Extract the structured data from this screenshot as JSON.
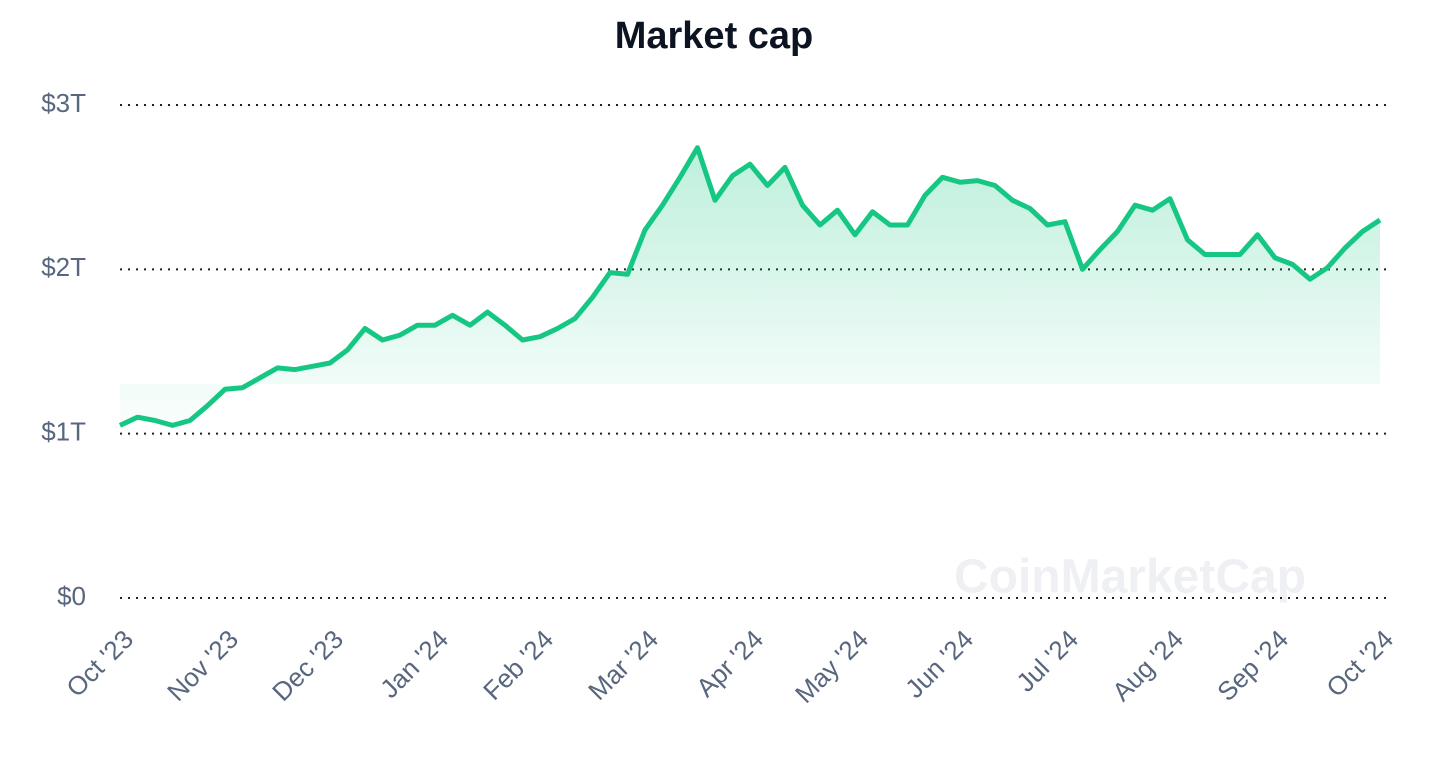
{
  "chart_data": {
    "type": "line",
    "title": "Market cap",
    "watermark": "CoinMarketCap",
    "categories": [
      "Oct '23",
      null,
      null,
      null,
      null,
      null,
      "Nov '23",
      null,
      null,
      null,
      null,
      null,
      "Dec '23",
      null,
      null,
      null,
      null,
      null,
      "Jan '24",
      null,
      null,
      null,
      null,
      null,
      "Feb '24",
      null,
      null,
      null,
      null,
      null,
      "Mar '24",
      null,
      null,
      null,
      null,
      null,
      "Apr '24",
      null,
      null,
      null,
      null,
      null,
      "May '24",
      null,
      null,
      null,
      null,
      null,
      "Jun '24",
      null,
      null,
      null,
      null,
      null,
      "Jul '24",
      null,
      null,
      null,
      null,
      null,
      "Aug '24",
      null,
      null,
      null,
      null,
      null,
      "Sep '24",
      null,
      null,
      null,
      null,
      null,
      "Oct '24"
    ],
    "series": [
      {
        "name": "Market cap",
        "color": "#16c784",
        "values": [
          1.05,
          1.1,
          1.08,
          1.05,
          1.08,
          1.17,
          1.27,
          1.28,
          1.34,
          1.4,
          1.39,
          1.41,
          1.43,
          1.51,
          1.64,
          1.57,
          1.6,
          1.66,
          1.66,
          1.72,
          1.66,
          1.74,
          1.66,
          1.57,
          1.59,
          1.64,
          1.7,
          1.83,
          1.98,
          1.97,
          2.24,
          2.39,
          2.56,
          2.74,
          2.42,
          2.57,
          2.64,
          2.51,
          2.62,
          2.39,
          2.27,
          2.36,
          2.21,
          2.35,
          2.27,
          2.27,
          2.45,
          2.56,
          2.53,
          2.54,
          2.51,
          2.42,
          2.37,
          2.27,
          2.29,
          2.0,
          2.12,
          2.23,
          2.39,
          2.36,
          2.43,
          2.18,
          2.09,
          2.09,
          2.09,
          2.21,
          2.07,
          2.03,
          1.94,
          2.01,
          2.13,
          2.23,
          2.3
        ]
      }
    ],
    "ylim": [
      0,
      3
    ],
    "yticks": [
      {
        "value": 0,
        "label": "$0"
      },
      {
        "value": 1,
        "label": "$1T"
      },
      {
        "value": 2,
        "label": "$2T"
      },
      {
        "value": 3,
        "label": "$3T"
      }
    ],
    "grid": true
  }
}
